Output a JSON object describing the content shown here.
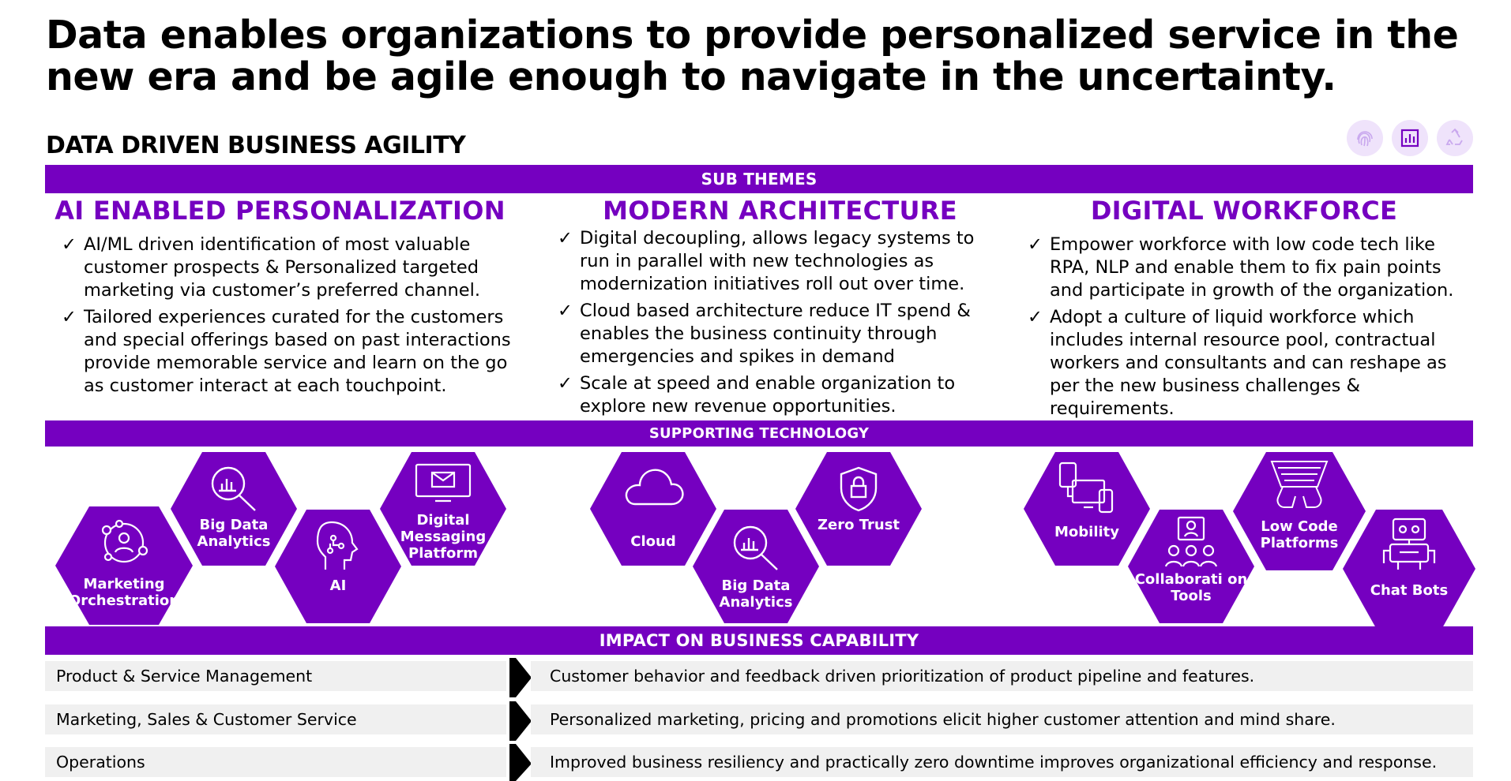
{
  "headline": "Data enables organizations to provide personalized service in the new era and be agile enough to navigate in the uncertainty.",
  "section_title": "DATA DRIVEN BUSINESS AGILITY",
  "top_icons": [
    "fingerprint-icon",
    "bar-chart-icon",
    "recycle-icon"
  ],
  "colors": {
    "accent": "#7500c0",
    "row_bg": "#f0f0f0"
  },
  "bands": {
    "sub_themes": "SUB THEMES",
    "supporting_technology": "SUPPORTING TECHNOLOGY",
    "impact": "IMPACT ON BUSINESS CAPABILITY"
  },
  "themes": [
    {
      "title": "AI ENABLED PERSONALIZATION",
      "bullets": [
        "AI/ML driven identification of most valuable customer prospects & Personalized targeted marketing via customer’s preferred channel.",
        "Tailored experiences curated for the customers and special offerings based on past interactions provide memorable service and learn on the go as customer interact at each touchpoint."
      ]
    },
    {
      "title": "MODERN ARCHITECTURE",
      "bullets": [
        "Digital decoupling, allows legacy systems to run in parallel with new technologies as modernization initiatives roll out over time.",
        "Cloud based architecture reduce IT spend & enables the business continuity through emergencies and spikes in demand",
        "Scale at speed and enable organization to explore new revenue opportunities."
      ]
    },
    {
      "title": "DIGITAL WORKFORCE",
      "bullets": [
        "Empower workforce with low code tech like RPA, NLP and enable them to fix pain points and participate in growth of the organization.",
        "Adopt a culture of liquid workforce which includes internal resource pool, contractual workers and consultants and can reshape as per the new business challenges & requirements."
      ]
    }
  ],
  "technologies": {
    "marketing_orchestration": "Marketing Orchestration",
    "big_data_analytics_1": "Big Data Analytics",
    "ai": "AI",
    "digital_messaging_platform": "Digital Messaging Platform",
    "cloud": "Cloud",
    "big_data_analytics_2": "Big Data Analytics",
    "zero_trust": "Zero Trust",
    "mobility": "Mobility",
    "collaboration_tools": "Collaborati on Tools",
    "low_code_platforms": "Low Code Platforms",
    "chat_bots": "Chat Bots"
  },
  "impact_rows": [
    {
      "capability": "Product & Service Management",
      "impact": "Customer behavior and feedback driven prioritization of product pipeline and features."
    },
    {
      "capability": "Marketing, Sales & Customer Service",
      "impact": "Personalized marketing, pricing and promotions elicit higher customer attention and mind share."
    },
    {
      "capability": "Operations",
      "impact": "Improved business resiliency and practically zero downtime improves organizational efficiency and response."
    }
  ]
}
